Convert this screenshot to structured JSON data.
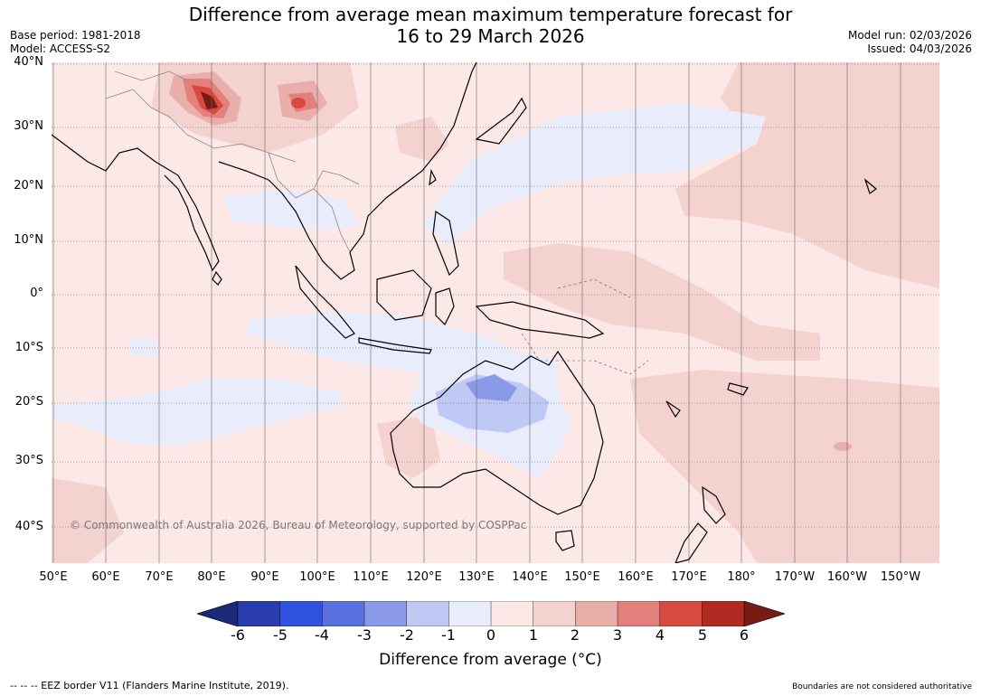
{
  "title": {
    "line1": "Difference from average mean maximum temperature forecast for",
    "line2": "16 to 29 March 2026"
  },
  "meta": {
    "base_period": "Base period: 1981-2018",
    "model": "Model: ACCESS-S2",
    "model_run": "Model run: 02/03/2026",
    "issued": "Issued: 04/03/2026"
  },
  "lat_labels": [
    "40°N",
    "30°N",
    "20°N",
    "10°N",
    "0°",
    "10°S",
    "20°S",
    "30°S",
    "40°S"
  ],
  "lon_labels": [
    "50°E",
    "60°E",
    "70°E",
    "80°E",
    "90°E",
    "100°E",
    "110°E",
    "120°E",
    "130°E",
    "140°E",
    "150°E",
    "160°E",
    "170°E",
    "180°",
    "170°W",
    "160°W",
    "150°W"
  ],
  "copyright": "© Commonwealth of Australia 2026, Bureau of Meteorology, supported by COSPPac",
  "colorbar": {
    "ticks": [
      "-6",
      "-5",
      "-4",
      "-3",
      "-2",
      "-1",
      "0",
      "1",
      "2",
      "3",
      "4",
      "5",
      "6"
    ],
    "colors": [
      "#1a2a78",
      "#2a3db0",
      "#3050e0",
      "#5a70e0",
      "#8a9ae8",
      "#c0c8f4",
      "#e9ecfb",
      "#fce9e7",
      "#f4d2d0",
      "#eaaeaa",
      "#e4807c",
      "#d84a40",
      "#b02a22",
      "#7a1a15"
    ],
    "label": "Difference from average (°C)"
  },
  "footer": {
    "eez": "--  --  -- EEZ border V11 (Flanders Marine Institute, 2019).",
    "boundaries": "Boundaries are not considered authoritative"
  }
}
